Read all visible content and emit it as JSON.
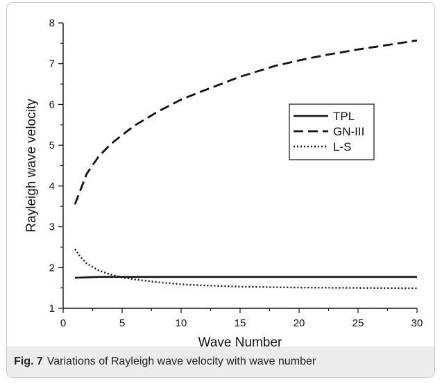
{
  "figure": {
    "caption_label": "Fig. 7",
    "caption_text": "Variations of Rayleigh wave velocity with wave number"
  },
  "chart_data": {
    "type": "line",
    "xlabel": "Wave Number",
    "ylabel": "Rayleigh wave velocity",
    "xlim": [
      0,
      30
    ],
    "ylim": [
      1,
      8
    ],
    "xticks": [
      0,
      5,
      10,
      15,
      20,
      25,
      30
    ],
    "yticks": [
      1,
      2,
      3,
      4,
      5,
      6,
      7,
      8
    ],
    "grid": false,
    "legend_position": "right-middle",
    "series": [
      {
        "name": "TPL",
        "style": "solid",
        "color": "#111111",
        "x": [
          1,
          2,
          3,
          5,
          10,
          15,
          20,
          25,
          30
        ],
        "y": [
          1.75,
          1.76,
          1.77,
          1.77,
          1.77,
          1.77,
          1.77,
          1.77,
          1.77
        ]
      },
      {
        "name": "GN-III",
        "style": "dashed",
        "color": "#111111",
        "x": [
          1,
          2,
          3,
          4,
          5,
          6,
          8,
          10,
          12,
          15,
          18,
          20,
          22,
          25,
          28,
          30
        ],
        "y": [
          3.55,
          4.3,
          4.72,
          5.02,
          5.25,
          5.47,
          5.82,
          6.12,
          6.35,
          6.68,
          6.95,
          7.08,
          7.2,
          7.35,
          7.48,
          7.57
        ]
      },
      {
        "name": "L-S",
        "style": "dotted",
        "color": "#111111",
        "x": [
          1,
          1.5,
          2,
          3,
          4,
          5,
          6,
          8,
          10,
          12,
          15,
          20,
          25,
          30
        ],
        "y": [
          2.45,
          2.25,
          2.1,
          1.93,
          1.83,
          1.76,
          1.71,
          1.64,
          1.59,
          1.56,
          1.53,
          1.51,
          1.5,
          1.49
        ]
      }
    ]
  }
}
